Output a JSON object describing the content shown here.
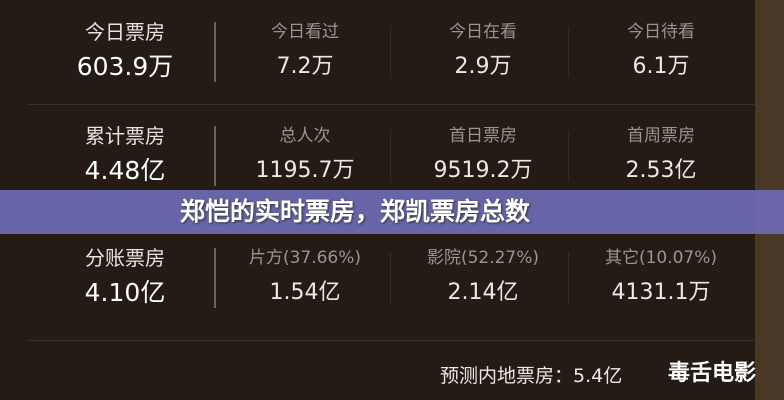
{
  "rows": [
    {
      "cells": [
        {
          "label": "今日票房",
          "value": "603.9万"
        },
        {
          "label": "今日看过",
          "value": "7.2万"
        },
        {
          "label": "今日在看",
          "value": "2.9万"
        },
        {
          "label": "今日待看",
          "value": "6.1万"
        }
      ]
    },
    {
      "cells": [
        {
          "label": "累计票房",
          "value": "4.48亿"
        },
        {
          "label": "总人次",
          "value": "1195.7万"
        },
        {
          "label": "首日票房",
          "value": "9519.2万"
        },
        {
          "label": "首周票房",
          "value": "2.53亿"
        }
      ]
    },
    {
      "cells": [
        {
          "label": "分账票房",
          "value": "4.10亿"
        },
        {
          "label": "片方(37.66%)",
          "value": "1.54亿"
        },
        {
          "label": "影院(52.27%)",
          "value": "2.14亿"
        },
        {
          "label": "其它(10.07%)",
          "value": "4131.1万"
        }
      ]
    }
  ],
  "forecast": "预测内地票房：5.4亿",
  "banner": "郑恺的实时票房，郑凯票房总数",
  "watermark": "毒舌电影",
  "colors": {
    "banner": "#6e6ab4",
    "background": "#231b14"
  }
}
